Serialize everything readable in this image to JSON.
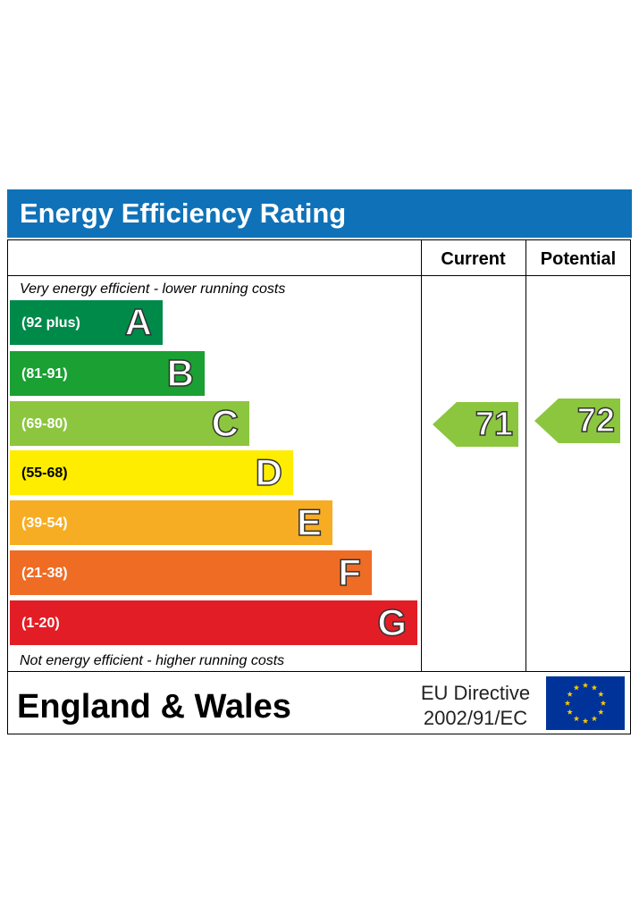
{
  "title": "Energy Efficiency Rating",
  "columns": {
    "current": "Current",
    "potential": "Potential"
  },
  "notes": {
    "top": "Very energy efficient - lower running costs",
    "bottom": "Not energy efficient - higher running costs"
  },
  "chart_data": {
    "type": "bar",
    "categories": [
      "A",
      "B",
      "C",
      "D",
      "E",
      "F",
      "G"
    ],
    "ranges": [
      "(92 plus)",
      "(81-91)",
      "(69-80)",
      "(55-68)",
      "(39-54)",
      "(21-38)",
      "(1-20)"
    ],
    "colors": [
      "#008a4a",
      "#1aa033",
      "#8cc63f",
      "#ffed00",
      "#f7ad23",
      "#ef6c24",
      "#e31d25"
    ],
    "current": {
      "value": "71",
      "band": "C",
      "color": "#8cc63f"
    },
    "potential": {
      "value": "72",
      "band": "C",
      "color": "#8cc63f"
    }
  },
  "footer": {
    "region": "England & Wales",
    "directive_line1": "EU Directive",
    "directive_line2": "2002/91/EC",
    "flag": {
      "icon": "eu-flag-icon",
      "background": "#003399",
      "stars": "#ffcc00"
    }
  }
}
